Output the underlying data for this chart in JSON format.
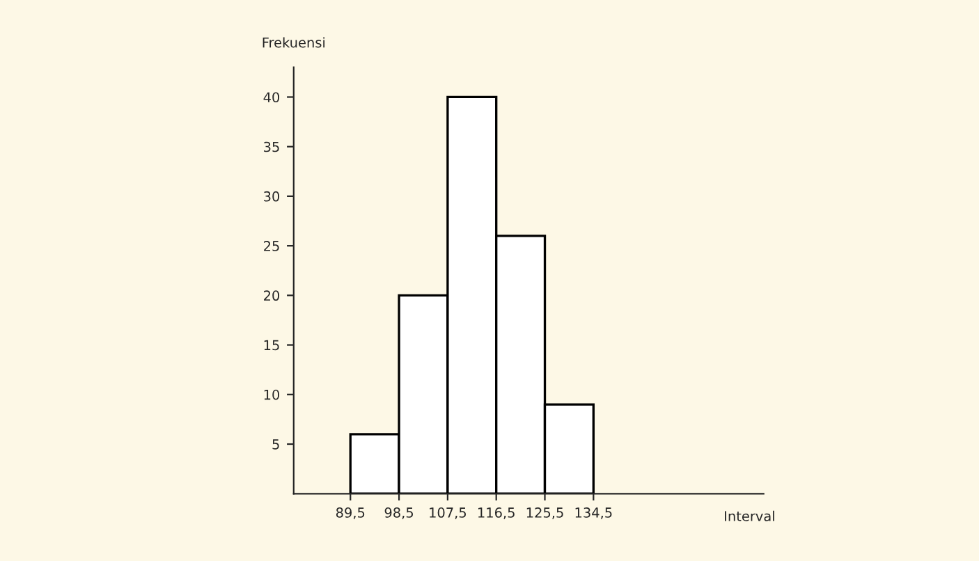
{
  "chart_data": {
    "type": "histogram",
    "xlabel": "Interval",
    "ylabel": "Frekuensi",
    "bins": [
      89.5,
      98.5,
      107.5,
      116.5,
      125.5,
      134.5
    ],
    "values": [
      6,
      20,
      40,
      26,
      9
    ],
    "color": "#ffffff",
    "xlim": [
      79,
      166
    ],
    "ylim": [
      0,
      43
    ],
    "xticks": [
      {
        "value": 89.5,
        "label": "89,5"
      },
      {
        "value": 98.5,
        "label": "98,5"
      },
      {
        "value": 107.5,
        "label": "107,5"
      },
      {
        "value": 116.5,
        "label": "116,5"
      },
      {
        "value": 125.5,
        "label": "125,5"
      },
      {
        "value": 134.5,
        "label": "134,5"
      }
    ],
    "yticks": [
      5,
      10,
      15,
      20,
      25,
      30,
      35,
      40
    ],
    "grid": false,
    "legend": false
  }
}
